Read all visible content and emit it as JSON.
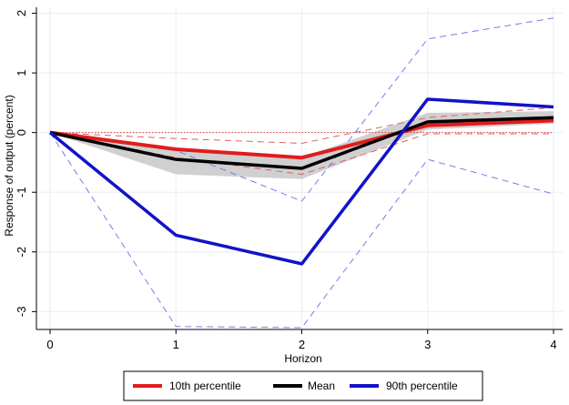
{
  "chart_data": {
    "type": "line",
    "xlabel": "Horizon",
    "ylabel": "Response of output (percent)",
    "x": [
      0,
      1,
      2,
      3,
      4
    ],
    "xlim": [
      0,
      4
    ],
    "ylim": [
      -3.3,
      2.1
    ],
    "xticks": [
      0,
      1,
      2,
      3,
      4
    ],
    "yticks": [
      -3,
      -2,
      -1,
      0,
      1,
      2
    ],
    "grid": true,
    "legend_position": "bottom",
    "zero_line": {
      "value": 0,
      "color": "#e03030"
    },
    "band": {
      "series": "Mean",
      "lower": [
        0,
        -0.7,
        -0.78,
        0.05,
        0.15
      ],
      "upper": [
        0,
        -0.28,
        -0.42,
        0.33,
        0.36
      ],
      "color": "#c8c8c8"
    },
    "series": [
      {
        "name": "10th percentile",
        "values": [
          0,
          -0.28,
          -0.42,
          0.12,
          0.2
        ],
        "color": "#e11c1c",
        "width": 4
      },
      {
        "name": "Mean",
        "values": [
          0,
          -0.45,
          -0.6,
          0.18,
          0.25
        ],
        "color": "#000000",
        "width": 3.5
      },
      {
        "name": "90th percentile",
        "values": [
          0,
          -1.72,
          -2.2,
          0.56,
          0.43
        ],
        "color": "#1212c8",
        "width": 3.5
      }
    ],
    "bounds": [
      {
        "of": "10th percentile",
        "lower": [
          0,
          -0.42,
          -0.7,
          -0.02,
          -0.02
        ],
        "upper": [
          0,
          -0.1,
          -0.18,
          0.25,
          0.42
        ],
        "color": "#e06060"
      },
      {
        "of": "90th percentile",
        "lower": [
          0,
          -3.25,
          -3.27,
          -0.45,
          -1.03
        ],
        "upper": [
          0,
          -0.3,
          -1.15,
          1.57,
          1.92
        ],
        "color": "#7a7ae8"
      }
    ]
  }
}
